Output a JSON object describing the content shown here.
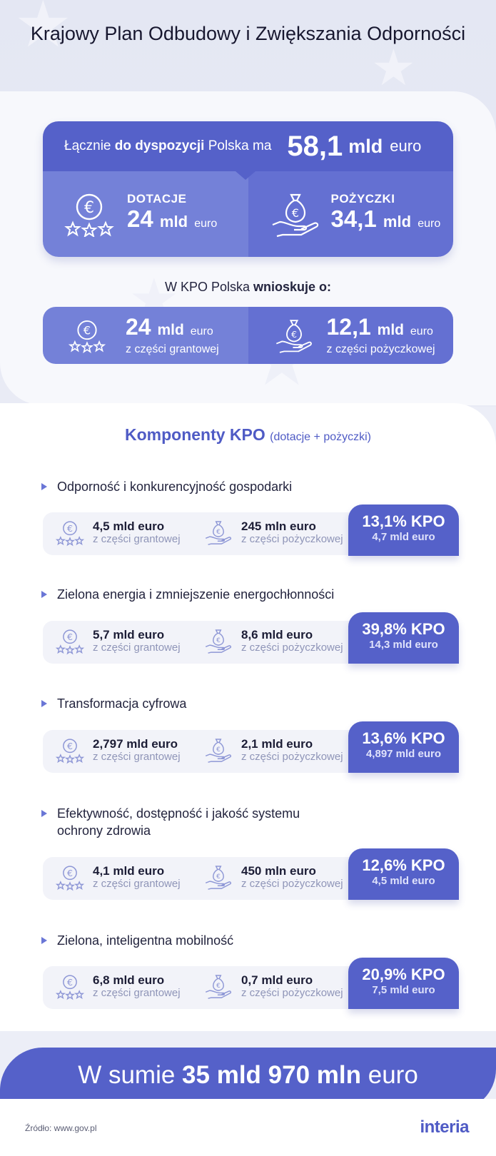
{
  "title": "Krajowy Plan Odbudowy i Zwiększania Odporności",
  "hero": {
    "lead_pre": "Łącznie",
    "lead_bold": "do dyspozycji",
    "lead_post": "Polska ma",
    "total_number": "58,1",
    "total_mld": "mld",
    "total_unit": "euro",
    "grants_caption": "DOTACJE",
    "grants_number": "24",
    "grants_mld": "mld",
    "grants_unit": "euro",
    "loans_caption": "POŻYCZKI",
    "loans_number": "34,1",
    "loans_mld": "mld",
    "loans_unit": "euro"
  },
  "request": {
    "pre": "W KPO Polska",
    "bold": "wnioskuje o:",
    "grant_number": "24",
    "grant_mld": "mld",
    "grant_unit": "euro",
    "grant_sub": "z części grantowej",
    "loan_number": "12,1",
    "loan_mld": "mld",
    "loan_unit": "euro",
    "loan_sub": "z części pożyczkowej"
  },
  "components_title": "Komponenty KPO",
  "components_subtitle": "(dotacje + pożyczki)",
  "components": [
    {
      "name": "Odporność i konkurencyjność gospodarki",
      "grant": "4,5 mld euro",
      "grant_sub": "z części grantowej",
      "loan": "245 mln euro",
      "loan_sub": "z części pożyczkowej",
      "kpo_pct": "13,1% KPO",
      "kpo_amount": "4,7 mld euro"
    },
    {
      "name": "Zielona energia i zmniejszenie energochłonności",
      "grant": "5,7 mld euro",
      "grant_sub": "z części grantowej",
      "loan": "8,6 mld euro",
      "loan_sub": "z części pożyczkowej",
      "kpo_pct": "39,8% KPO",
      "kpo_amount": "14,3 mld euro"
    },
    {
      "name": "Transformacja cyfrowa",
      "grant": "2,797 mld euro",
      "grant_sub": "z części grantowej",
      "loan": "2,1 mld euro",
      "loan_sub": "z części pożyczkowej",
      "kpo_pct": "13,6% KPO",
      "kpo_amount": "4,897 mld euro"
    },
    {
      "name_line1": "Efektywność, dostępność i jakość systemu",
      "name_line2": "ochrony zdrowia",
      "grant": "4,1 mld euro",
      "grant_sub": "z części grantowej",
      "loan": "450 mln euro",
      "loan_sub": "z części pożyczkowej",
      "kpo_pct": "12,6% KPO",
      "kpo_amount": "4,5 mld euro"
    },
    {
      "name": "Zielona, inteligentna mobilność",
      "grant": "6,8 mld euro",
      "grant_sub": "z części grantowej",
      "loan": "0,7 mld euro",
      "loan_sub": "z części pożyczkowej",
      "kpo_pct": "20,9% KPO",
      "kpo_amount": "7,5 mld euro"
    }
  ],
  "sum": {
    "pre": "W sumie",
    "bold": "35 mld 970 mln",
    "post": "euro"
  },
  "source": "Źródło: www.gov.pl",
  "logo": "interia",
  "colors": {
    "accent": "#5561c9",
    "accent_light": "#7481d8",
    "background": "#eceef7"
  },
  "icons": [
    "euro-coin-stars-icon",
    "money-bag-hand-icon",
    "bullet-triangle-icon"
  ]
}
